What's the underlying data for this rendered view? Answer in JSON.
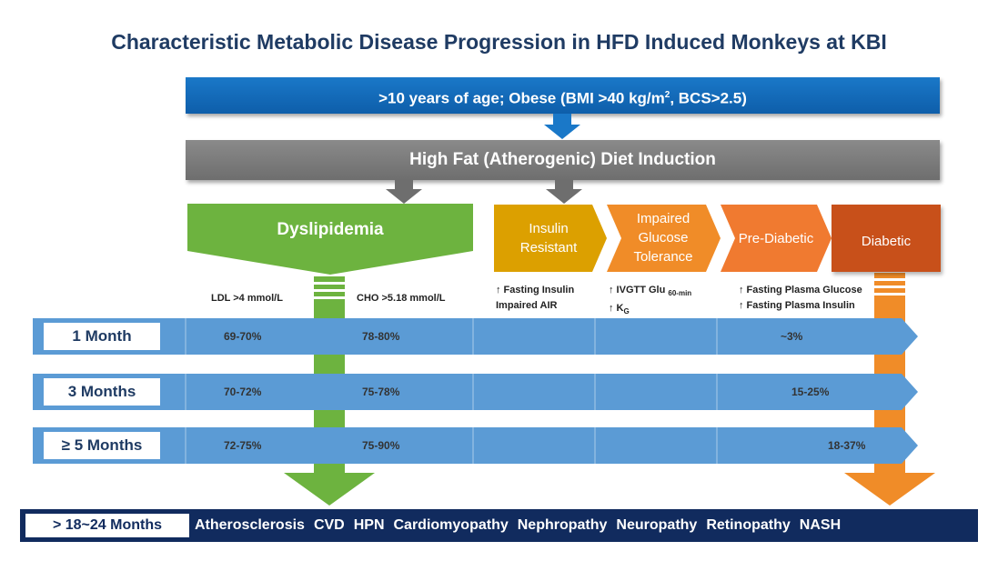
{
  "title": "Characteristic Metabolic Disease Progression in HFD Induced Monkeys at KBI",
  "top_bar": {
    "text_main": ">10 years of age; Obese (BMI >40 kg/m",
    "superscript": "2",
    "text_tail": ", BCS>2.5)"
  },
  "diet_bar": "High Fat (Atherogenic) Diet Induction",
  "dyslipidemia": {
    "label": "Dyslipidemia",
    "criterion_ldl": "LDL >4  mmol/L",
    "criterion_cho": "CHO >5.18 mmol/L"
  },
  "stages": [
    {
      "label_line1": "Insulin",
      "label_line2": "Resistant",
      "color": "#dca000"
    },
    {
      "label_line1": "Impaired",
      "label_line2": "Glucose",
      "label_line3": "Tolerance",
      "color": "#f08c28"
    },
    {
      "label_line1": "Pre-Diabetic",
      "color": "#f07a30"
    },
    {
      "label_line1": "Diabetic",
      "color": "#c8501a"
    }
  ],
  "criteria": {
    "insulin_1": "↑ Fasting Insulin",
    "insulin_2": "Impaired AIR",
    "igt_1": "↑ IVGTT Glu",
    "igt_1_sub": "60-min",
    "igt_2": "↑ K",
    "igt_2_sub": "G",
    "pre_1": "↑ Fasting Plasma Glucose",
    "pre_2": "↑ Fasting Plasma Insulin"
  },
  "rows": [
    {
      "label": "1 Month",
      "ldl": "69-70%",
      "cho": "78-80%",
      "diabetic": "~3%"
    },
    {
      "label": "3 Months",
      "ldl": "70-72%",
      "cho": "75-78%",
      "diabetic": "15-25%"
    },
    {
      "label": "≥ 5 Months",
      "ldl": "72-75%",
      "cho": "75-90%",
      "diabetic": "18-37%"
    }
  ],
  "outcome": {
    "label": "> 18~24 Months",
    "items": [
      "Atherosclerosis",
      "CVD",
      "HPN",
      "Cardiomyopathy",
      "Nephropathy",
      "Neuropathy",
      "Retinopathy",
      "NASH"
    ]
  },
  "colors": {
    "blue": "#1a78c8",
    "navy": "#112b5e",
    "green": "#6db33f",
    "orange": "#f08c28",
    "gray": "#7a7a7a",
    "row": "#5b9bd5"
  }
}
